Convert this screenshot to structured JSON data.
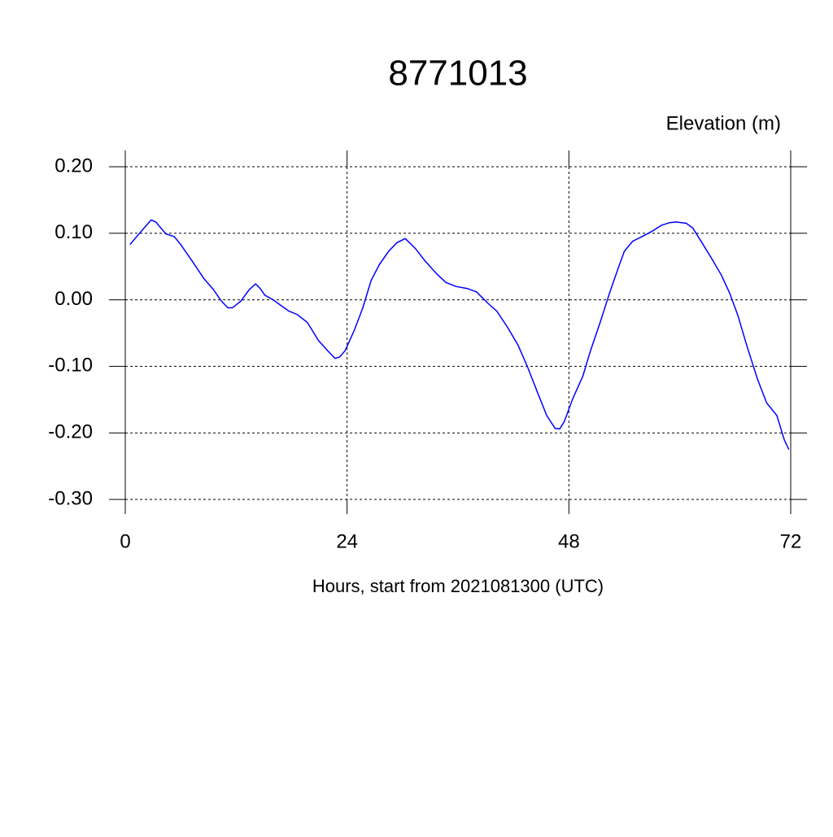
{
  "chart_data": {
    "type": "line",
    "title": "8771013",
    "ylabel": "Elevation (m)",
    "xlabel": "Hours, start from 2021081300 (UTC)",
    "xlim": [
      0,
      72
    ],
    "xticks": [
      0,
      24,
      48,
      72
    ],
    "ylim": [
      -0.3,
      0.2
    ],
    "yticks": [
      {
        "value": -0.3,
        "label": "-0.30"
      },
      {
        "value": -0.2,
        "label": "-0.20"
      },
      {
        "value": -0.1,
        "label": "-0.10"
      },
      {
        "value": 0,
        "label": "0.00"
      },
      {
        "value": 0.1,
        "label": "0.10"
      },
      {
        "value": 0.2,
        "label": "0.20"
      }
    ],
    "grid": true,
    "x": [
      0.5,
      1.6,
      2.8,
      3.3,
      4.4,
      5.3,
      6.0,
      7.2,
      8.5,
      9.5,
      10.4,
      11.1,
      11.6,
      12.5,
      13.4,
      14.1,
      14.6,
      15.1,
      16.0,
      16.9,
      17.7,
      18.6,
      19.7,
      20.9,
      22.0,
      22.7,
      23.2,
      23.8,
      24.8,
      25.7,
      26.6,
      27.5,
      28.5,
      29.4,
      30.3,
      31.4,
      32.4,
      33.7,
      34.7,
      35.8,
      37.0,
      38.0,
      39.3,
      40.2,
      41.4,
      42.5,
      43.5,
      44.6,
      45.6,
      46.5,
      47.0,
      47.5,
      48.4,
      49.5,
      50.3,
      51.4,
      52.4,
      53.3,
      54.0,
      54.9,
      55.9,
      57.0,
      58.0,
      58.9,
      59.6,
      60.7,
      61.4,
      62.4,
      63.5,
      64.5,
      65.4,
      66.3,
      67.3,
      68.4,
      69.4,
      70.5,
      71.3,
      71.8
    ],
    "series": [
      {
        "color": "#0000ff",
        "values": [
          0.083,
          0.101,
          0.12,
          0.117,
          0.099,
          0.095,
          0.083,
          0.059,
          0.032,
          0.016,
          -0.002,
          -0.012,
          -0.012,
          -0.002,
          0.015,
          0.024,
          0.017,
          0.007,
          0.0,
          -0.009,
          -0.017,
          -0.022,
          -0.034,
          -0.061,
          -0.078,
          -0.088,
          -0.086,
          -0.076,
          -0.045,
          -0.012,
          0.029,
          0.053,
          0.073,
          0.086,
          0.092,
          0.077,
          0.059,
          0.039,
          0.026,
          0.02,
          0.017,
          0.012,
          -0.006,
          -0.017,
          -0.042,
          -0.068,
          -0.1,
          -0.139,
          -0.174,
          -0.193,
          -0.194,
          -0.183,
          -0.149,
          -0.115,
          -0.078,
          -0.033,
          0.01,
          0.046,
          0.073,
          0.088,
          0.095,
          0.103,
          0.112,
          0.116,
          0.117,
          0.115,
          0.108,
          0.086,
          0.061,
          0.037,
          0.01,
          -0.024,
          -0.071,
          -0.119,
          -0.155,
          -0.174,
          -0.21,
          -0.225
        ]
      }
    ]
  }
}
